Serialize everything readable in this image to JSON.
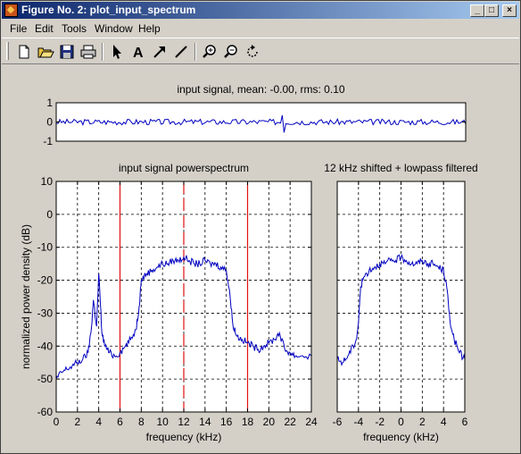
{
  "window": {
    "title": "Figure No. 2: plot_input_spectrum",
    "controls": {
      "minimize": "_",
      "maximize": "□",
      "close": "×"
    }
  },
  "menu": [
    "File",
    "Edit",
    "Tools",
    "Window",
    "Help"
  ],
  "toolbar": {
    "icons": [
      "new-document-icon",
      "open-folder-icon",
      "save-disk-icon",
      "print-icon",
      "select-arrow-icon",
      "insert-text-icon",
      "insert-arrow-icon",
      "insert-line-icon",
      "zoom-in-icon",
      "zoom-out-icon",
      "rotate-3d-icon"
    ],
    "text_tool_label": "A"
  },
  "colors": {
    "trace": "#0000c0",
    "markers": "#e01010",
    "grid": "#000000",
    "titlebar_start": "#0a246a",
    "titlebar_end": "#a6caf0"
  },
  "chart_data": [
    {
      "type": "line",
      "title": "input signal, mean: -0.00, rms: 0.10",
      "xlabel": "",
      "ylabel": "",
      "ylim": [
        -1,
        1
      ],
      "yticks": [
        "1",
        "0",
        "-1"
      ],
      "xticks": [],
      "grid": false,
      "series": [
        {
          "description": "noise-like time signal, amplitude about ±0.1"
        }
      ]
    },
    {
      "type": "line",
      "title": "input signal powerspectrum",
      "xlabel": "frequency (kHz)",
      "ylabel": "normalized power density (dB)",
      "xlim": [
        0,
        24
      ],
      "ylim": [
        -60,
        10
      ],
      "xticks": [
        "0",
        "2",
        "4",
        "6",
        "8",
        "10",
        "12",
        "14",
        "16",
        "18",
        "20",
        "22",
        "24"
      ],
      "yticks": [
        "10",
        "0",
        "-10",
        "-20",
        "-30",
        "-40",
        "-50",
        "-60"
      ],
      "grid": true,
      "x": [
        0,
        0.5,
        1,
        1.5,
        2,
        2.5,
        3,
        3.3,
        3.5,
        3.8,
        4,
        4.3,
        4.6,
        5,
        5.5,
        6,
        6.5,
        7,
        7.5,
        7.8,
        8,
        8.5,
        9,
        9.5,
        10,
        10.5,
        11,
        11.5,
        12,
        12.5,
        13,
        13.5,
        14,
        14.5,
        15,
        15.5,
        16,
        16.3,
        16.6,
        17,
        17.5,
        18,
        18.5,
        19,
        19.5,
        20,
        20.5,
        21,
        21.5,
        22,
        22.5,
        23,
        24
      ],
      "y": [
        -50,
        -48,
        -47,
        -46,
        -45,
        -44,
        -42,
        -35,
        -26,
        -34,
        -18,
        -36,
        -40,
        -42,
        -43,
        -42,
        -40,
        -38,
        -35,
        -28,
        -20,
        -18,
        -17,
        -16,
        -15,
        -15,
        -14,
        -14,
        -13,
        -14,
        -15,
        -15,
        -14,
        -15,
        -15,
        -16,
        -17,
        -23,
        -33,
        -37,
        -38,
        -39,
        -40,
        -41,
        -40,
        -39,
        -38,
        -36,
        -41,
        -42,
        -43,
        -43,
        -43
      ],
      "markers": [
        {
          "x": 6,
          "style": "solid"
        },
        {
          "x": 12,
          "style": "dashed"
        },
        {
          "x": 18,
          "style": "solid"
        }
      ]
    },
    {
      "type": "line",
      "title": "12 kHz shifted + lowpass filtered",
      "xlabel": "frequency (kHz)",
      "ylabel": "",
      "xlim": [
        -6,
        6
      ],
      "ylim": [
        -60,
        10
      ],
      "xticks": [
        "-6",
        "-4",
        "-2",
        "0",
        "2",
        "4",
        "6"
      ],
      "yticks": [],
      "grid": true,
      "x": [
        -6,
        -5.5,
        -5,
        -4.5,
        -4.2,
        -4,
        -3.8,
        -3.5,
        -3,
        -2.5,
        -2,
        -1.5,
        -1,
        -0.5,
        0,
        0.5,
        1,
        1.5,
        2,
        2.5,
        3,
        3.5,
        4,
        4.3,
        4.6,
        5,
        5.5,
        6
      ],
      "y": [
        -44,
        -45,
        -43,
        -40,
        -38,
        -33,
        -22,
        -19,
        -17,
        -16,
        -15,
        -15,
        -14,
        -14,
        -13,
        -14,
        -15,
        -15,
        -14,
        -15,
        -15,
        -16,
        -17,
        -22,
        -32,
        -38,
        -42,
        -44
      ]
    }
  ]
}
